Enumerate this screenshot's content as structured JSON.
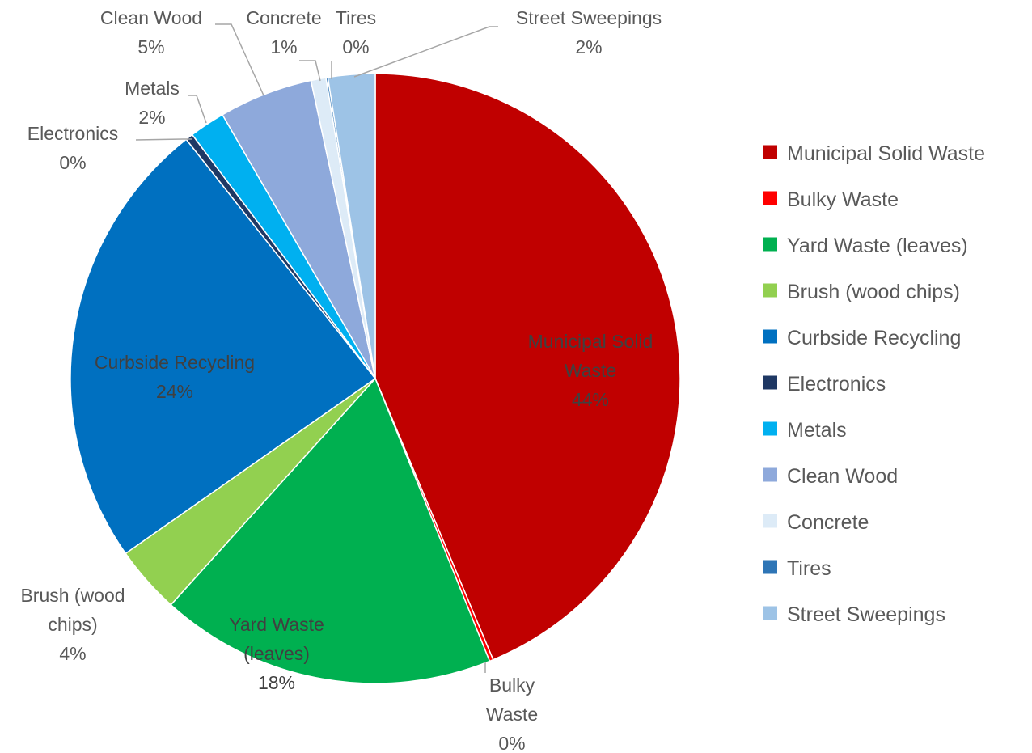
{
  "chart_data": {
    "type": "pie",
    "title": "",
    "start_angle_deg": 0,
    "direction": "clockwise",
    "legend_position": "right",
    "slices": [
      {
        "name": "Municipal Solid Waste",
        "value": 43.9,
        "label_lines": [
          "Municipal Solid",
          "Waste"
        ],
        "percent_label": "44%",
        "color": "#C00000",
        "label_placement": "inside"
      },
      {
        "name": "Bulky Waste",
        "value": 0.2,
        "label_lines": [
          "Bulky",
          "Waste"
        ],
        "percent_label": "0%",
        "color": "#FF0000",
        "label_placement": "outside"
      },
      {
        "name": "Yard Waste (leaves)",
        "value": 17.9,
        "label_lines": [
          "Yard Waste",
          "(leaves)"
        ],
        "percent_label": "18%",
        "color": "#00B050",
        "label_placement": "inside"
      },
      {
        "name": "Brush (wood chips)",
        "value": 3.6,
        "label_lines": [
          "Brush (wood",
          "chips)"
        ],
        "percent_label": "4%",
        "color": "#92D050",
        "label_placement": "outside"
      },
      {
        "name": "Curbside Recycling",
        "value": 24.2,
        "label_lines": [
          "Curbside Recycling"
        ],
        "percent_label": "24%",
        "color": "#0070C0",
        "label_placement": "inside"
      },
      {
        "name": "Electronics",
        "value": 0.4,
        "label_lines": [
          "Electronics"
        ],
        "percent_label": "0%",
        "color": "#1F3864",
        "label_placement": "outside"
      },
      {
        "name": "Metals",
        "value": 1.9,
        "label_lines": [
          "Metals"
        ],
        "percent_label": "2%",
        "color": "#00B0F0",
        "label_placement": "outside"
      },
      {
        "name": "Clean Wood",
        "value": 5.0,
        "label_lines": [
          "Clean Wood"
        ],
        "percent_label": "5%",
        "color": "#8EA9DB",
        "label_placement": "outside"
      },
      {
        "name": "Concrete",
        "value": 0.8,
        "label_lines": [
          "Concrete"
        ],
        "percent_label": "1%",
        "color": "#DDEBF7",
        "label_placement": "outside"
      },
      {
        "name": "Tires",
        "value": 0.1,
        "label_lines": [
          "Tires"
        ],
        "percent_label": "0%",
        "color": "#2E75B6",
        "label_placement": "outside"
      },
      {
        "name": "Street Sweepings",
        "value": 2.5,
        "label_lines": [
          "Street Sweepings"
        ],
        "percent_label": "2%",
        "color": "#9DC3E6",
        "label_placement": "outside"
      }
    ]
  }
}
